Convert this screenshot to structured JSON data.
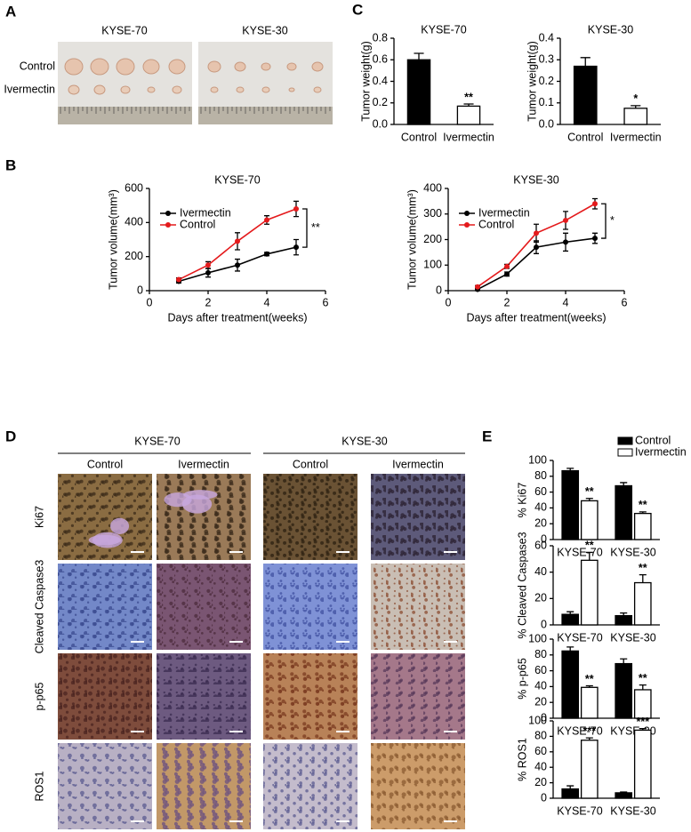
{
  "panel_labels": [
    "A",
    "B",
    "C",
    "D",
    "E"
  ],
  "photos": {
    "columns": [
      "KYSE-70",
      "KYSE-30"
    ],
    "rows": [
      "Control",
      "Ivermectin"
    ]
  },
  "ihc": {
    "groups": [
      "KYSE-70",
      "KYSE-30"
    ],
    "columns": [
      "Control",
      "Ivermectin",
      "Control",
      "Ivermectin"
    ],
    "rows": [
      "Ki67",
      "Cleaved Caspase3",
      "p-p65",
      "ROS1"
    ]
  },
  "chart_data": [
    {
      "type": "bar",
      "title": "KYSE-70",
      "y_label": "Tumor weight(g)",
      "categories": [
        "Control",
        "Ivermectin"
      ],
      "values": [
        0.6,
        0.17
      ],
      "errors": [
        0.06,
        0.02
      ],
      "colors": [
        "#000000",
        "#ffffff"
      ],
      "annotations": [
        null,
        "**"
      ],
      "ylim": [
        0,
        0.8
      ],
      "yticks": [
        {
          "value": 0,
          "label": "0.0"
        },
        0.2,
        0.4,
        0.6,
        0.8
      ]
    },
    {
      "type": "bar",
      "title": "KYSE-30",
      "y_label": "Tumor weight(g)",
      "categories": [
        "Control",
        "Ivermectin"
      ],
      "values": [
        0.27,
        0.075
      ],
      "errors": [
        0.04,
        0.012
      ],
      "colors": [
        "#000000",
        "#ffffff"
      ],
      "annotations": [
        null,
        "*"
      ],
      "ylim": [
        0,
        0.4
      ],
      "yticks": [
        {
          "value": 0,
          "label": "0.0"
        },
        0.1,
        0.2,
        0.3,
        0.4
      ]
    },
    {
      "type": "line",
      "title": "KYSE-70",
      "x_label": "Days after treatment(weeks)",
      "y_label": "Tumor volume(mm³)",
      "x": [
        1,
        2,
        3,
        4,
        5
      ],
      "series": [
        {
          "name": "Ivermectin",
          "color": "#000000",
          "values": [
            55,
            105,
            150,
            215,
            255
          ],
          "errors": [
            10,
            25,
            35,
            10,
            45
          ]
        },
        {
          "name": "Control",
          "color": "#e41a1c",
          "values": [
            65,
            150,
            290,
            415,
            480
          ],
          "errors": [
            10,
            20,
            50,
            25,
            45
          ]
        }
      ],
      "xlim": [
        0,
        6
      ],
      "xticks": [
        0,
        2,
        4,
        6
      ],
      "ylim": [
        0,
        600
      ],
      "yticks": [
        0,
        200,
        400,
        600
      ],
      "significance": "**",
      "legend": "top-left"
    },
    {
      "type": "line",
      "title": "KYSE-30",
      "x_label": "Days after treatment(weeks)",
      "y_label": "Tumor volume(mm³)",
      "x": [
        1,
        2,
        3,
        4,
        5
      ],
      "series": [
        {
          "name": "Ivermectin",
          "color": "#000000",
          "values": [
            5,
            65,
            170,
            190,
            205
          ],
          "errors": [
            5,
            8,
            25,
            35,
            20
          ]
        },
        {
          "name": "Control",
          "color": "#e41a1c",
          "values": [
            15,
            95,
            225,
            275,
            340
          ],
          "errors": [
            5,
            8,
            35,
            35,
            20
          ]
        }
      ],
      "xlim": [
        0,
        6
      ],
      "xticks": [
        0,
        2,
        4,
        6
      ],
      "ylim": [
        0,
        400
      ],
      "yticks": [
        0,
        100,
        200,
        300,
        400
      ],
      "significance": "*",
      "legend": "top-left"
    },
    {
      "type": "bar",
      "y_label": "% Ki67",
      "categories": [
        "KYSE-70",
        "KYSE-30"
      ],
      "series": [
        {
          "name": "Control",
          "color": "#000000",
          "values": [
            87,
            68
          ],
          "errors": [
            3,
            4
          ]
        },
        {
          "name": "Ivermectin",
          "color": "#ffffff",
          "values": [
            49,
            33
          ],
          "errors": [
            3,
            2
          ],
          "annotations": [
            "**",
            "**"
          ]
        }
      ],
      "ylim": [
        0,
        100
      ],
      "yticks": [
        0,
        20,
        40,
        60,
        80,
        100
      ],
      "legend": "top-right"
    },
    {
      "type": "bar",
      "y_label": "% Cleaved Caspase3",
      "categories": [
        "KYSE-70",
        "KYSE-30"
      ],
      "series": [
        {
          "color": "#000000",
          "values": [
            8,
            7
          ],
          "errors": [
            2,
            2
          ]
        },
        {
          "color": "#ffffff",
          "values": [
            49,
            32
          ],
          "errors": [
            6,
            6
          ],
          "annotations": [
            "**",
            "**"
          ]
        }
      ],
      "ylim": [
        0,
        60
      ],
      "yticks": [
        0,
        20,
        40,
        60
      ]
    },
    {
      "type": "bar",
      "y_label": "% p-p65",
      "categories": [
        "KYSE-70",
        "KYSE-30"
      ],
      "series": [
        {
          "color": "#000000",
          "values": [
            85,
            69
          ],
          "errors": [
            5,
            6
          ]
        },
        {
          "color": "#ffffff",
          "values": [
            39,
            36
          ],
          "errors": [
            2,
            6
          ],
          "annotations": [
            "**",
            "**"
          ]
        }
      ],
      "ylim": [
        0,
        100
      ],
      "yticks": [
        0,
        20,
        40,
        60,
        80,
        100
      ]
    },
    {
      "type": "bar",
      "y_label": "% ROS1",
      "categories": [
        "KYSE-70",
        "KYSE-30"
      ],
      "series": [
        {
          "color": "#000000",
          "values": [
            12,
            7
          ],
          "errors": [
            4,
            1
          ]
        },
        {
          "color": "#ffffff",
          "values": [
            75,
            88
          ],
          "errors": [
            3,
            2
          ],
          "annotations": [
            "***",
            "***"
          ]
        }
      ],
      "ylim": [
        0,
        100
      ],
      "yticks": [
        0,
        20,
        40,
        60,
        80,
        100
      ]
    }
  ]
}
